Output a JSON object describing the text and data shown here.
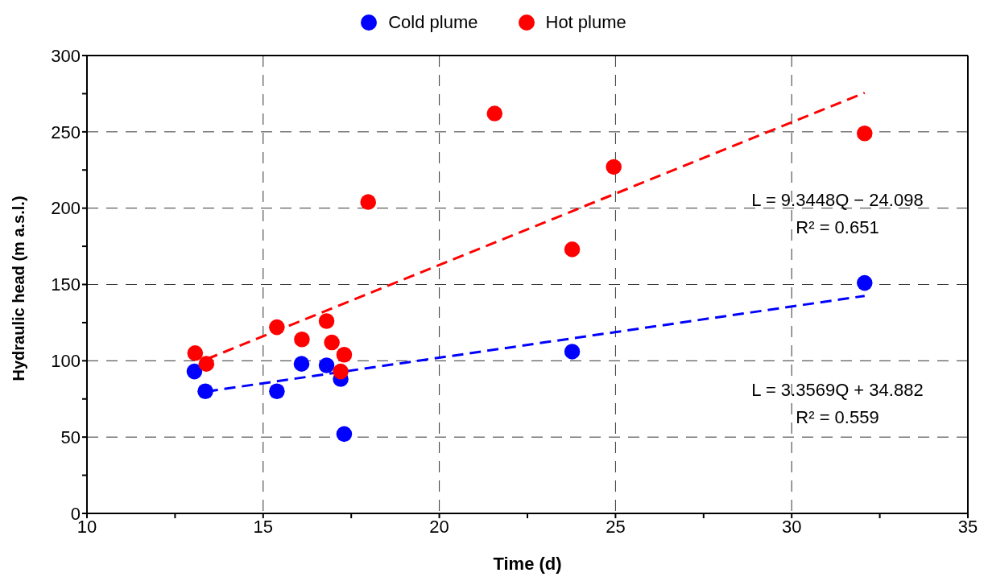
{
  "chart_data": {
    "type": "scatter",
    "xlabel": "Time (d)",
    "ylabel": "Hydraulic head (m a.s.l.)",
    "xlim": [
      10,
      35
    ],
    "xticks": [
      10,
      {
        "value": 12.5,
        "label": null
      },
      15,
      {
        "value": 17.5,
        "label": null
      },
      20,
      {
        "value": 22.5,
        "label": null
      },
      25,
      {
        "value": 27.5,
        "label": null
      },
      30,
      {
        "value": 32.5,
        "label": null
      },
      35
    ],
    "ylim": [
      0,
      300
    ],
    "yticks": [
      0,
      {
        "value": 25,
        "label": null
      },
      50,
      {
        "value": 75,
        "label": null
      },
      100,
      {
        "value": 125,
        "label": null
      },
      150,
      {
        "value": 175,
        "label": null
      },
      200,
      {
        "value": 225,
        "label": null
      },
      250,
      {
        "value": 275,
        "label": null
      },
      300
    ],
    "grid": true,
    "legend": "top",
    "marker": "circle",
    "series": [
      {
        "name": "Cold plume",
        "color": "#0000ff",
        "x": [
          13.05,
          13.36,
          15.39,
          16.09,
          16.8,
          17.2,
          17.3,
          23.77,
          32.07
        ],
        "values": [
          93,
          80,
          80,
          98,
          97,
          88,
          52,
          106,
          151
        ]
      },
      {
        "name": "Hot plume",
        "color": "#ff0000",
        "x": [
          13.07,
          13.39,
          15.39,
          16.1,
          16.8,
          16.95,
          17.3,
          17.2,
          17.98,
          21.57,
          23.77,
          24.95,
          32.07
        ],
        "values": [
          105,
          98,
          122,
          114,
          126,
          112,
          104,
          93,
          204,
          262,
          173,
          227,
          249
        ]
      },
      {
        "type": "line",
        "marker": "none",
        "color": "#ff0000",
        "line_style": "dashed",
        "x": [
          13.4,
          32.07
        ],
        "values": [
          101.1,
          275.6
        ]
      },
      {
        "type": "line",
        "marker": "none",
        "color": "#0000ff",
        "line_style": "dashed",
        "x": [
          13.4,
          32.07
        ],
        "values": [
          79.9,
          142.5
        ]
      }
    ],
    "annotations": [
      "L = 9.3448Q − 24.098",
      "R² = 0.651",
      "L = 3.3569Q + 34.882",
      "R² = 0.559"
    ]
  }
}
